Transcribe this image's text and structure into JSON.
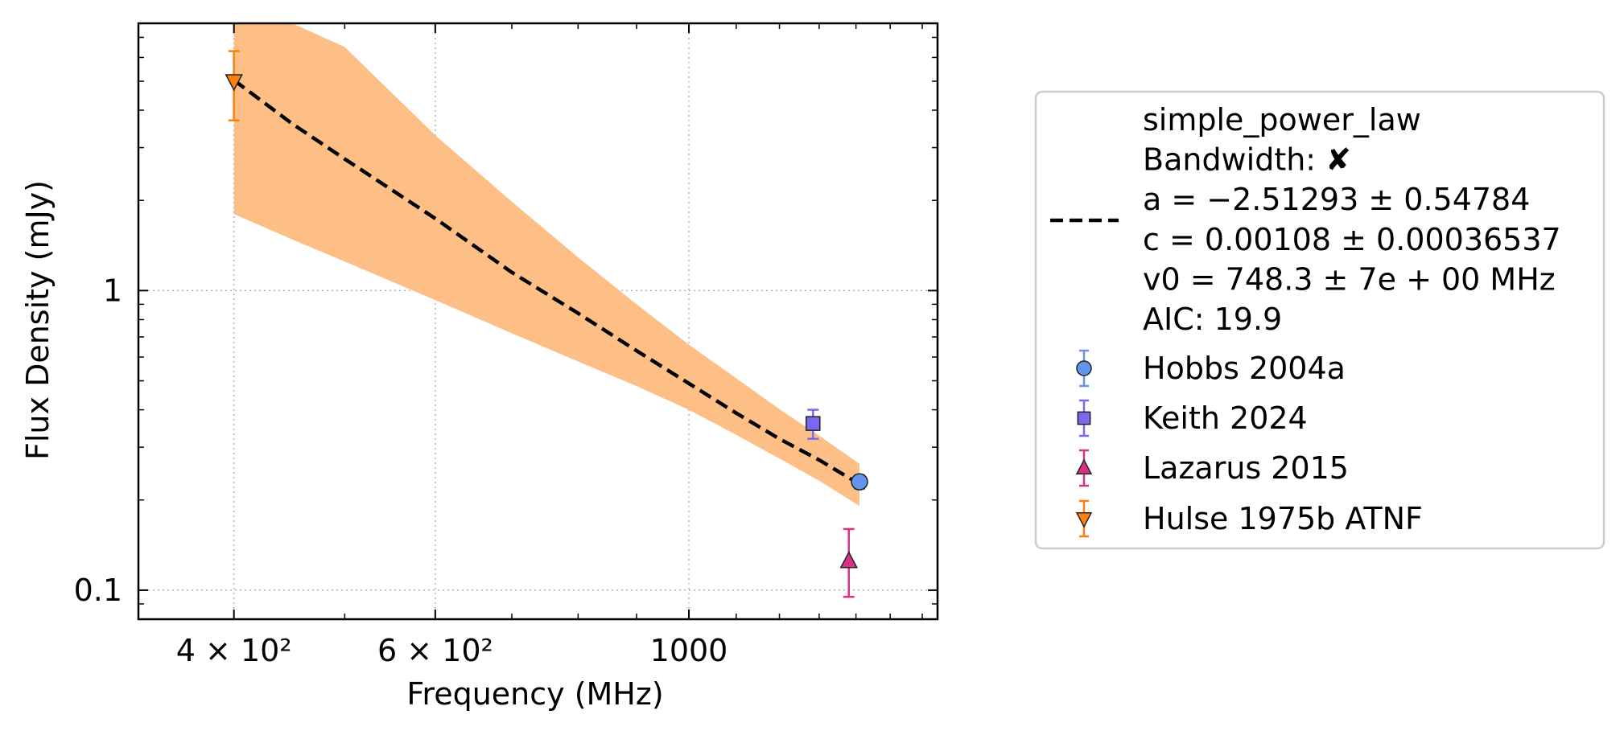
{
  "chart_data": {
    "type": "scatter",
    "xlabel": "Frequency (MHz)",
    "ylabel": "Flux Density (mJy)",
    "x_scale": "log",
    "y_scale": "log",
    "xlim": [
      330,
      1650
    ],
    "ylim": [
      0.08,
      7.8
    ],
    "x_ticks": [
      {
        "value": 400,
        "label": "4 × 10²"
      },
      {
        "value": 600,
        "label": "6 × 10²"
      },
      {
        "value": 1000,
        "label": "1000"
      }
    ],
    "y_ticks": [
      {
        "value": 0.1,
        "label": "0.1"
      },
      {
        "value": 1,
        "label": "1"
      }
    ],
    "grid": true,
    "legend_position": "outside-right",
    "fit": {
      "name": "simple_power_law",
      "legend_lines": [
        "simple_power_law",
        "Bandwidth: ✘",
        "a = −2.51293 ± 0.54784",
        "c = 0.00108 ± 0.00036537",
        "v0 = 748.3 ± 7e + 00 MHz",
        "AIC: 19.9"
      ],
      "line_color": "#000000",
      "line_style": "dashed",
      "band_color": "#fdbf86",
      "x": [
        400,
        450,
        500,
        600,
        700,
        800,
        900,
        1000,
        1100,
        1200,
        1300,
        1410
      ],
      "y": [
        5.04,
        3.6,
        2.75,
        1.74,
        1.15,
        0.84,
        0.63,
        0.49,
        0.39,
        0.32,
        0.272,
        0.226
      ],
      "band_lower": [
        1.8,
        1.48,
        1.25,
        0.93,
        0.72,
        0.58,
        0.48,
        0.4,
        0.33,
        0.275,
        0.232,
        0.191
      ],
      "band_upper": [
        7.8,
        7.8,
        6.5,
        3.3,
        1.98,
        1.29,
        0.9,
        0.66,
        0.51,
        0.402,
        0.328,
        0.264
      ]
    },
    "series": [
      {
        "name": "Hobbs 2004a",
        "marker": "circle",
        "color": "#6495ed",
        "points": [
          {
            "x": 1410,
            "y": 0.23,
            "err_low": 0.012,
            "err_high": 0.012
          }
        ]
      },
      {
        "name": "Keith 2024",
        "marker": "square",
        "color": "#7b68ee",
        "points": [
          {
            "x": 1284,
            "y": 0.36,
            "err_low": 0.04,
            "err_high": 0.04
          }
        ]
      },
      {
        "name": "Lazarus 2015",
        "marker": "triangle-up",
        "color": "#d63384",
        "points": [
          {
            "x": 1380,
            "y": 0.125,
            "err_low": 0.03,
            "err_high": 0.035
          }
        ]
      },
      {
        "name": "Hulse 1975b ATNF",
        "marker": "triangle-down",
        "color": "#ff7f0e",
        "points": [
          {
            "x": 400,
            "y": 5.0,
            "err_low": 1.3,
            "err_high": 1.3
          }
        ]
      }
    ]
  }
}
